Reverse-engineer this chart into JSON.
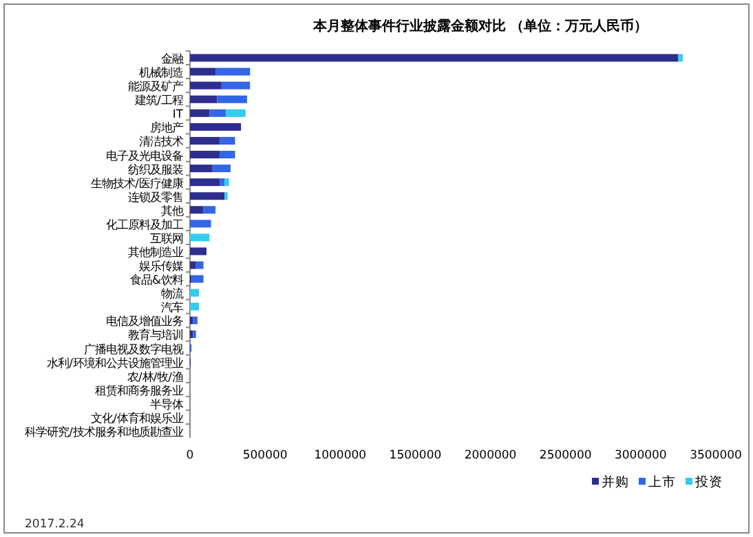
{
  "chart_data": {
    "type": "bar",
    "orientation": "horizontal",
    "stacked": true,
    "title": "本月整体事件行业披露金额对比    （单位：万元人民币）",
    "categories": [
      "金融",
      "机械制造",
      "能源及矿产",
      "建筑/工程",
      "IT",
      "房地产",
      "清洁技术",
      "电子及光电设备",
      "纺织及服装",
      "生物技术/医疗健康",
      "连锁及零售",
      "其他",
      "化工原料及加工",
      "互联网",
      "其他制造业",
      "娱乐传媒",
      "食品&饮料",
      "物流",
      "汽车",
      "电信及增值业务",
      "教育与培训",
      "广播电视及数字电视",
      "水利/环境和公共设施管理业",
      "农/林/牧/渔",
      "租赁和商务服务业",
      "半导体",
      "文化/体育和娱乐业",
      "科学研究/技术服务和地质勘查业"
    ],
    "series": [
      {
        "name": "并购",
        "color": "#2e2e8f",
        "values": [
          3250000,
          170000,
          210000,
          180000,
          130000,
          340000,
          200000,
          200000,
          150000,
          200000,
          230000,
          90000,
          0,
          0,
          110000,
          40000,
          10000,
          0,
          0,
          20000,
          20000,
          0,
          5000,
          0,
          0,
          0,
          0,
          0
        ]
      },
      {
        "name": "上市",
        "color": "#3366e6",
        "values": [
          0,
          230000,
          190000,
          200000,
          110000,
          0,
          100000,
          100000,
          120000,
          30000,
          0,
          80000,
          140000,
          0,
          0,
          50000,
          80000,
          0,
          0,
          30000,
          20000,
          10000,
          0,
          0,
          0,
          0,
          0,
          0
        ]
      },
      {
        "name": "投资",
        "color": "#33ccee",
        "values": [
          30000,
          0,
          0,
          0,
          130000,
          0,
          0,
          0,
          0,
          30000,
          20000,
          0,
          0,
          130000,
          0,
          0,
          0,
          60000,
          60000,
          0,
          0,
          0,
          0,
          0,
          0,
          0,
          0,
          0
        ]
      }
    ],
    "xlim": [
      0,
      3500000
    ],
    "xticks": [
      0,
      500000,
      1000000,
      1500000,
      2000000,
      2500000,
      3000000,
      3500000
    ],
    "grid": false,
    "legend": "bottom right",
    "annotations": [
      "2017.2.24"
    ]
  }
}
